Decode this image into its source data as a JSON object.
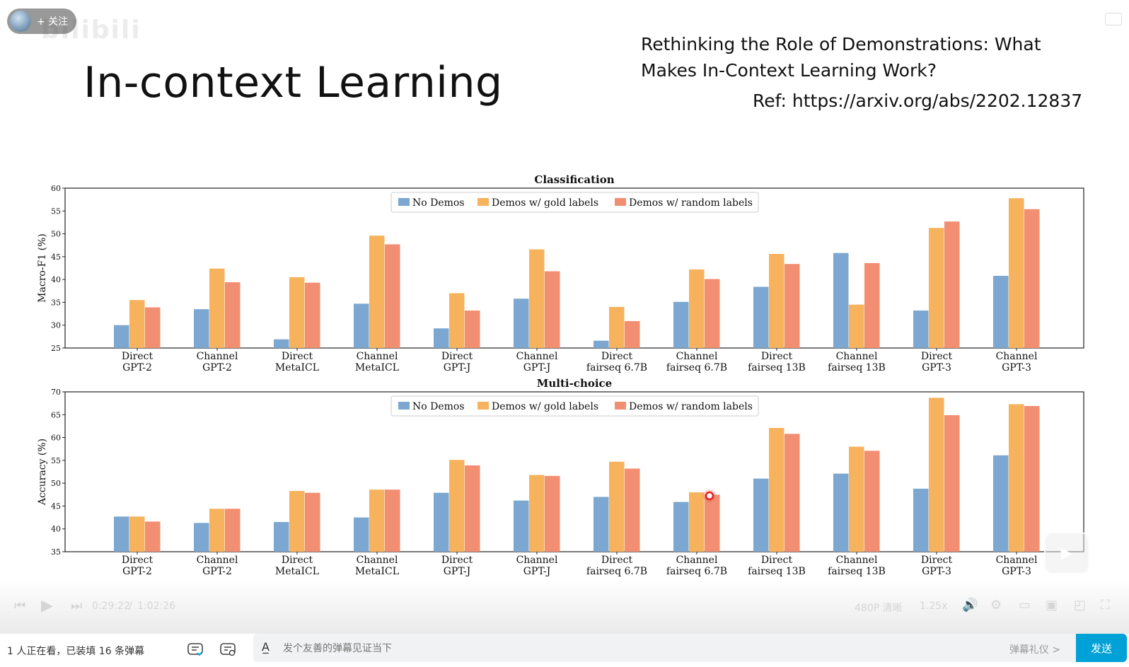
{
  "slide": {
    "title": "In-context Learning",
    "paper_title": "Rethinking the Role of Demonstrations: What Makes In-Context Learning Work?",
    "ref": "Ref: https://arxiv.org/abs/2202.12837"
  },
  "uploader": {
    "follow_label": "+ 关注"
  },
  "player": {
    "time_current": "0:29:22",
    "time_sep": "/",
    "time_total": "1:02:26",
    "quality": "480P 清晰",
    "speed": "1.25x"
  },
  "bottom_bar": {
    "viewer_info": "1 人正在看，已装填 16 条弹幕",
    "danmaku_placeholder": "发个友善的弹幕见证当下",
    "etiquette": "弹幕礼仪 >",
    "send_label": "发送"
  },
  "colors": {
    "no_demos": "#7ba7d0",
    "gold": "#f7b25e",
    "random": "#f28e72"
  },
  "chart_data": [
    {
      "type": "bar",
      "title": "Classification",
      "ylabel": "Macro-F1 (%)",
      "ylim": [
        25,
        60
      ],
      "yticks": [
        25,
        30,
        35,
        40,
        45,
        50,
        55,
        60
      ],
      "legend_position": "top-center",
      "categories": [
        "Direct\nGPT-2",
        "Channel\nGPT-2",
        "Direct\nMetaICL",
        "Channel\nMetaICL",
        "Direct\nGPT-J",
        "Channel\nGPT-J",
        "Direct\nfairseq 6.7B",
        "Channel\nfairseq 6.7B",
        "Direct\nfairseq 13B",
        "Channel\nfairseq 13B",
        "Direct\nGPT-3",
        "Channel\nGPT-3"
      ],
      "series": [
        {
          "name": "No Demos",
          "values": [
            30.0,
            33.5,
            26.9,
            34.7,
            29.3,
            35.8,
            26.6,
            35.1,
            38.4,
            45.8,
            33.2,
            40.8
          ]
        },
        {
          "name": "Demos w/ gold labels",
          "values": [
            35.5,
            42.4,
            40.5,
            49.6,
            37.0,
            46.6,
            34.0,
            42.2,
            45.6,
            34.5,
            51.3,
            57.8
          ]
        },
        {
          "name": "Demos w/ random labels",
          "values": [
            33.9,
            39.4,
            39.3,
            47.7,
            33.2,
            41.8,
            30.9,
            40.1,
            43.4,
            43.6,
            52.7,
            55.4
          ]
        }
      ]
    },
    {
      "type": "bar",
      "title": "Multi-choice",
      "ylabel": "Accuracy (%)",
      "ylim": [
        35,
        70
      ],
      "yticks": [
        35,
        40,
        45,
        50,
        55,
        60,
        65,
        70
      ],
      "legend_position": "top-center",
      "categories": [
        "Direct\nGPT-2",
        "Channel\nGPT-2",
        "Direct\nMetaICL",
        "Channel\nMetaICL",
        "Direct\nGPT-J",
        "Channel\nGPT-J",
        "Direct\nfairseq 6.7B",
        "Channel\nfairseq 6.7B",
        "Direct\nfairseq 13B",
        "Channel\nfairseq 13B",
        "Direct\nGPT-3",
        "Channel\nGPT-3"
      ],
      "series": [
        {
          "name": "No Demos",
          "values": [
            42.7,
            41.3,
            41.5,
            42.5,
            47.9,
            46.2,
            47.0,
            45.9,
            51.0,
            52.1,
            48.8,
            56.1
          ]
        },
        {
          "name": "Demos w/ gold labels",
          "values": [
            42.7,
            44.4,
            48.3,
            48.6,
            55.1,
            51.8,
            54.7,
            48.0,
            62.1,
            58.0,
            68.7,
            67.3
          ]
        },
        {
          "name": "Demos w/ random labels",
          "values": [
            41.6,
            44.4,
            47.9,
            48.6,
            53.9,
            51.6,
            53.2,
            47.5,
            60.8,
            57.1,
            64.9,
            66.9
          ]
        }
      ]
    }
  ]
}
